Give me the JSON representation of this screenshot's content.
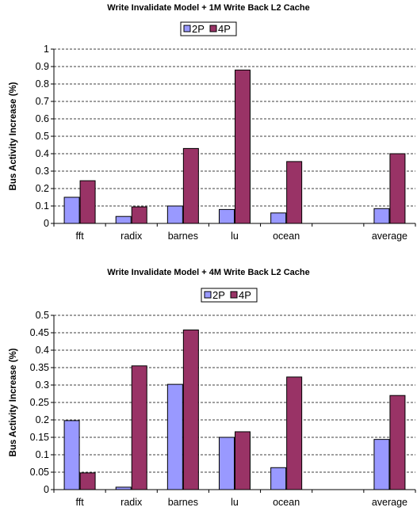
{
  "series_colors": {
    "2P": "#9999ff",
    "4P": "#993366"
  },
  "chart_data": [
    {
      "type": "bar",
      "title": "Write Invalidate Model + 1M Write Back L2 Cache",
      "ylabel": "Bus Activity Increase (%)",
      "xlabel": "",
      "categories": [
        "fft",
        "radix",
        "barnes",
        "lu",
        "ocean",
        "",
        "average"
      ],
      "series": [
        {
          "name": "2P",
          "values": [
            0.15,
            0.04,
            0.1,
            0.08,
            0.06,
            null,
            0.085
          ]
        },
        {
          "name": "4P",
          "values": [
            0.245,
            0.095,
            0.43,
            0.88,
            0.355,
            null,
            0.4
          ]
        }
      ],
      "ylim": [
        0,
        1
      ],
      "yticks": [
        "0",
        "0.1",
        "0.2",
        "0.3",
        "0.4",
        "0.5",
        "0.6",
        "0.7",
        "0.8",
        "0.9",
        "1"
      ],
      "legend": "top",
      "grid": "dashed"
    },
    {
      "type": "bar",
      "title": "Write Invalidate Model + 4M Write Back L2 Cache",
      "ylabel": "Bus Activity Increase (%)",
      "xlabel": "",
      "categories": [
        "fft",
        "radix",
        "barnes",
        "lu",
        "ocean",
        "",
        "average"
      ],
      "series": [
        {
          "name": "2P",
          "values": [
            0.198,
            0.007,
            0.302,
            0.15,
            0.063,
            null,
            0.144
          ]
        },
        {
          "name": "4P",
          "values": [
            0.048,
            0.355,
            0.458,
            0.166,
            0.323,
            null,
            0.27
          ]
        }
      ],
      "ylim": [
        0,
        0.5
      ],
      "yticks": [
        "0",
        "0.05",
        "0.1",
        "0.15",
        "0.2",
        "0.25",
        "0.3",
        "0.35",
        "0.4",
        "0.45",
        "0.5"
      ],
      "legend": "top",
      "grid": "dashed"
    }
  ]
}
